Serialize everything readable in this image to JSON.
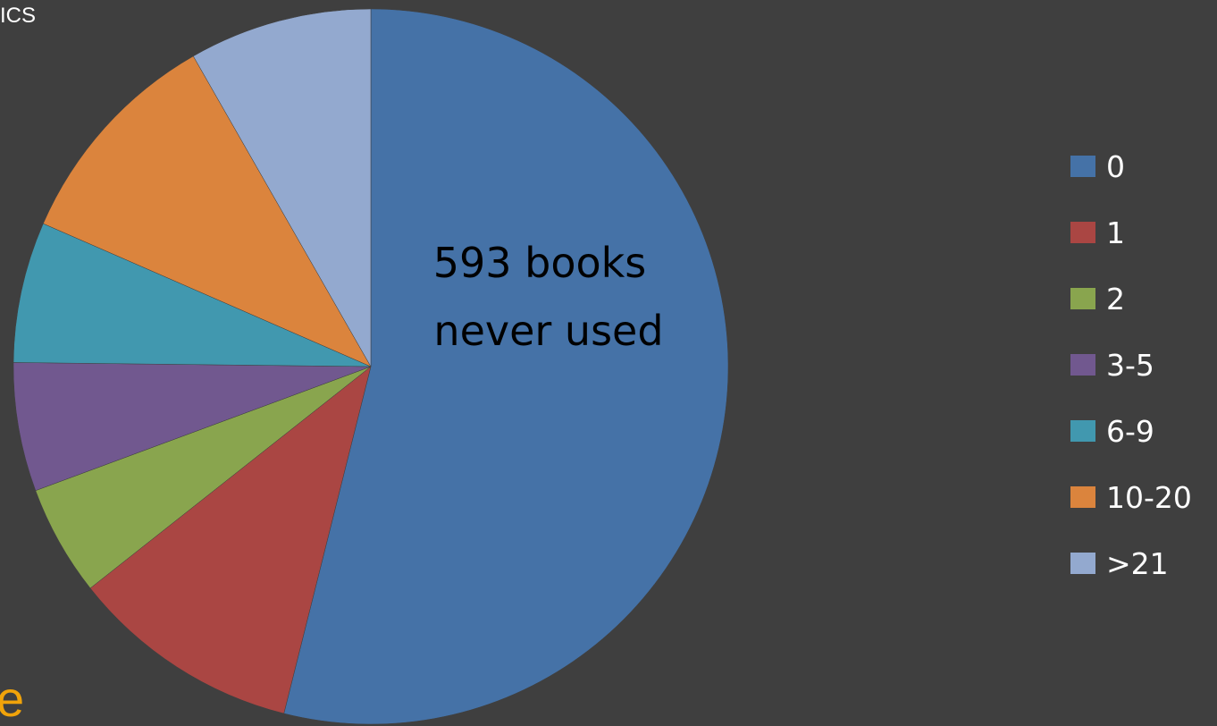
{
  "page": {
    "corner_text": "ICS",
    "bottom_text": "e"
  },
  "chart_data": {
    "type": "pie",
    "title": "",
    "annotation": "593 books\nnever used",
    "annotation_lines": [
      "593 books",
      "never used"
    ],
    "legend_position": "right",
    "start_angle_deg": 0,
    "direction": "clockwise",
    "slices": [
      {
        "label": "0",
        "value": 593,
        "color": "#4572a7"
      },
      {
        "label": "1",
        "value": 115,
        "color": "#aa4643"
      },
      {
        "label": "2",
        "value": 55,
        "color": "#89a54e"
      },
      {
        "label": "3-5",
        "value": 64,
        "color": "#71588f"
      },
      {
        "label": "6-9",
        "value": 70,
        "color": "#4198af"
      },
      {
        "label": "10-20",
        "value": 112,
        "color": "#db843d"
      },
      {
        "label": ">21",
        "value": 91,
        "color": "#93a9cf"
      }
    ]
  }
}
